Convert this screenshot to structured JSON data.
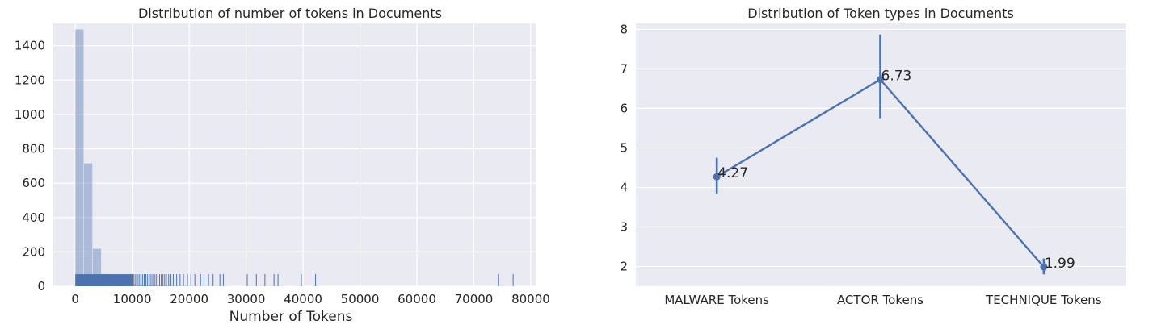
{
  "chart_data": [
    {
      "type": "bar",
      "title": "Distribution of number of tokens in Documents",
      "xlabel": "Number of Tokens",
      "ylabel": "",
      "xlim": [
        -4000,
        81000
      ],
      "ylim": [
        0,
        1530
      ],
      "xticks": [
        0,
        10000,
        20000,
        30000,
        40000,
        50000,
        60000,
        70000,
        80000
      ],
      "xtick_labels": [
        "0",
        "10000",
        "20000",
        "30000",
        "40000",
        "50000",
        "60000",
        "70000",
        "80000"
      ],
      "yticks": [
        0,
        200,
        400,
        600,
        800,
        1000,
        1200,
        1400
      ],
      "ytick_labels": [
        "0",
        "200",
        "400",
        "600",
        "800",
        "1000",
        "1200",
        "1400"
      ],
      "grid": true,
      "bin_width": 1540,
      "bins": [
        {
          "x_start": 0,
          "value": 1495
        },
        {
          "x_start": 1540,
          "value": 715
        },
        {
          "x_start": 3080,
          "value": 218
        },
        {
          "x_start": 4620,
          "value": 70
        },
        {
          "x_start": 6160,
          "value": 40
        },
        {
          "x_start": 7700,
          "value": 22
        },
        {
          "x_start": 9240,
          "value": 12
        },
        {
          "x_start": 10780,
          "value": 8
        },
        {
          "x_start": 12320,
          "value": 6
        },
        {
          "x_start": 13860,
          "value": 4
        },
        {
          "x_start": 15400,
          "value": 3
        },
        {
          "x_start": 16940,
          "value": 2
        },
        {
          "x_start": 18480,
          "value": 2
        },
        {
          "x_start": 20020,
          "value": 1
        },
        {
          "x_start": 21560,
          "value": 1
        },
        {
          "x_start": 23100,
          "value": 1
        },
        {
          "x_start": 24640,
          "value": 1
        },
        {
          "x_start": 26180,
          "value": 1
        },
        {
          "x_start": 29260,
          "value": 1
        },
        {
          "x_start": 30800,
          "value": 1
        },
        {
          "x_start": 32340,
          "value": 1
        },
        {
          "x_start": 33880,
          "value": 1
        },
        {
          "x_start": 35420,
          "value": 1
        },
        {
          "x_start": 38500,
          "value": 1
        },
        {
          "x_start": 41580,
          "value": 1
        },
        {
          "x_start": 73920,
          "value": 1
        },
        {
          "x_start": 75460,
          "value": 1
        }
      ],
      "rug_height": 70,
      "rug_values": [
        10000,
        10300,
        10600,
        10900,
        11200,
        11500,
        11800,
        12100,
        12400,
        12700,
        13000,
        13300,
        13600,
        13900,
        14200,
        14500,
        14800,
        15100,
        15400,
        15700,
        16000,
        16400,
        16800,
        17200,
        17800,
        18400,
        19000,
        19700,
        20300,
        21000,
        22000,
        22600,
        23400,
        24200,
        25400,
        26000,
        30200,
        31800,
        33300,
        34900,
        35600,
        39700,
        42200,
        74300,
        76900
      ],
      "rug_dense_until": 10000,
      "color": "#4c72b0"
    },
    {
      "type": "line",
      "title": "Distribution of Token types in Documents",
      "categories": [
        "MALWARE Tokens",
        "ACTOR Tokens",
        "TECHNIQUE Tokens"
      ],
      "values": [
        4.27,
        6.73,
        1.99
      ],
      "value_labels": [
        "4.27",
        "6.73",
        "1.99"
      ],
      "ci_low": [
        3.85,
        5.75,
        1.8
      ],
      "ci_high": [
        4.75,
        7.87,
        2.2
      ],
      "ylim": [
        1.5,
        8.15
      ],
      "yticks": [
        2,
        3,
        4,
        5,
        6,
        7,
        8
      ],
      "ytick_labels": [
        "2",
        "3",
        "4",
        "5",
        "6",
        "7",
        "8"
      ],
      "xlabel": "",
      "ylabel": "",
      "grid": true,
      "color": "#4c72b0"
    }
  ]
}
